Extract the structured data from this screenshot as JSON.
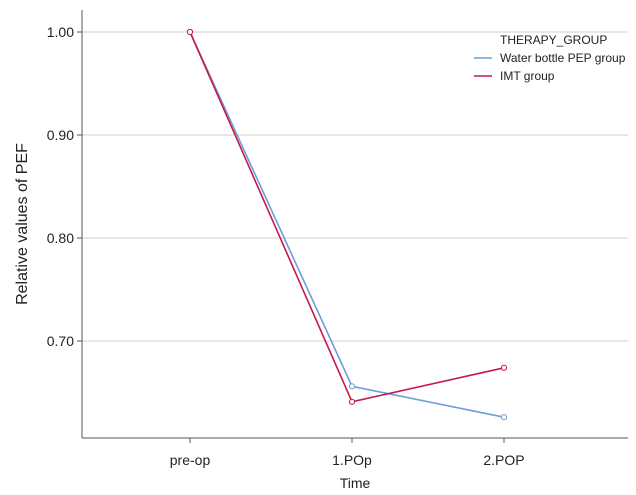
{
  "chart_data": {
    "type": "line",
    "title": "",
    "xlabel": "Time",
    "ylabel": "Relative values of PEF",
    "categories": [
      "pre-op",
      "1.POp",
      "2.POP"
    ],
    "ylim": [
      0.6,
      1.02
    ],
    "yticks": [
      0.7,
      0.8,
      0.9,
      1.0
    ],
    "ytick_labels": [
      "0.70",
      "0.80",
      "0.90",
      "1.00"
    ],
    "grid": "horizontal",
    "legend": {
      "title": "THERAPY_GROUP",
      "position": "top-right"
    },
    "series": [
      {
        "name": "Water bottle PEP group",
        "color": "#6a9fd8",
        "values": [
          1.0,
          0.656,
          0.626
        ]
      },
      {
        "name": "IMT group",
        "color": "#c8194a",
        "values": [
          1.0,
          0.641,
          0.674
        ]
      }
    ]
  }
}
